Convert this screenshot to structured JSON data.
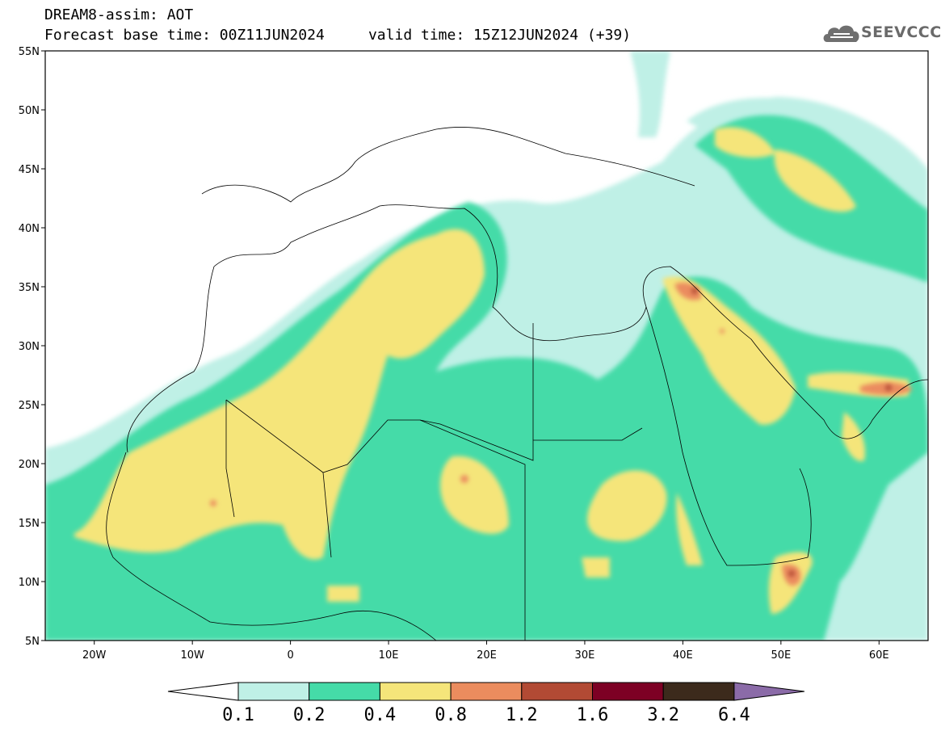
{
  "header": {
    "line1": "DREAM8-assim: AOT",
    "line2": "Forecast base time: 00Z11JUN2024     valid time: 15Z12JUN2024 (+39)"
  },
  "logo": {
    "text": "SEEVCCC",
    "icon": "cloud-icon"
  },
  "map": {
    "extent": {
      "lon": [
        -25,
        65
      ],
      "lat": [
        5,
        55
      ]
    },
    "lat_ticks": [
      {
        "value": 55,
        "label": "55N"
      },
      {
        "value": 50,
        "label": "50N"
      },
      {
        "value": 45,
        "label": "45N"
      },
      {
        "value": 40,
        "label": "40N"
      },
      {
        "value": 35,
        "label": "35N"
      },
      {
        "value": 30,
        "label": "30N"
      },
      {
        "value": 25,
        "label": "25N"
      },
      {
        "value": 20,
        "label": "20N"
      },
      {
        "value": 15,
        "label": "15N"
      },
      {
        "value": 10,
        "label": "10N"
      },
      {
        "value": 5,
        "label": "5N"
      }
    ],
    "lon_ticks": [
      {
        "value": -20,
        "label": "20W"
      },
      {
        "value": -10,
        "label": "10W"
      },
      {
        "value": 0,
        "label": "0"
      },
      {
        "value": 10,
        "label": "10E"
      },
      {
        "value": 20,
        "label": "20E"
      },
      {
        "value": 30,
        "label": "30E"
      },
      {
        "value": 40,
        "label": "40E"
      },
      {
        "value": 50,
        "label": "50E"
      },
      {
        "value": 60,
        "label": "60E"
      }
    ]
  },
  "colorbar": {
    "labels": [
      "0.1",
      "0.2",
      "0.4",
      "0.8",
      "1.2",
      "1.6",
      "3.2",
      "6.4"
    ],
    "colors": [
      "#ffffff",
      "#bff0e6",
      "#45dba8",
      "#f5e57a",
      "#eb8c5e",
      "#b24a34",
      "#7d0024",
      "#3c2a1c",
      "#8b6ba8"
    ]
  }
}
